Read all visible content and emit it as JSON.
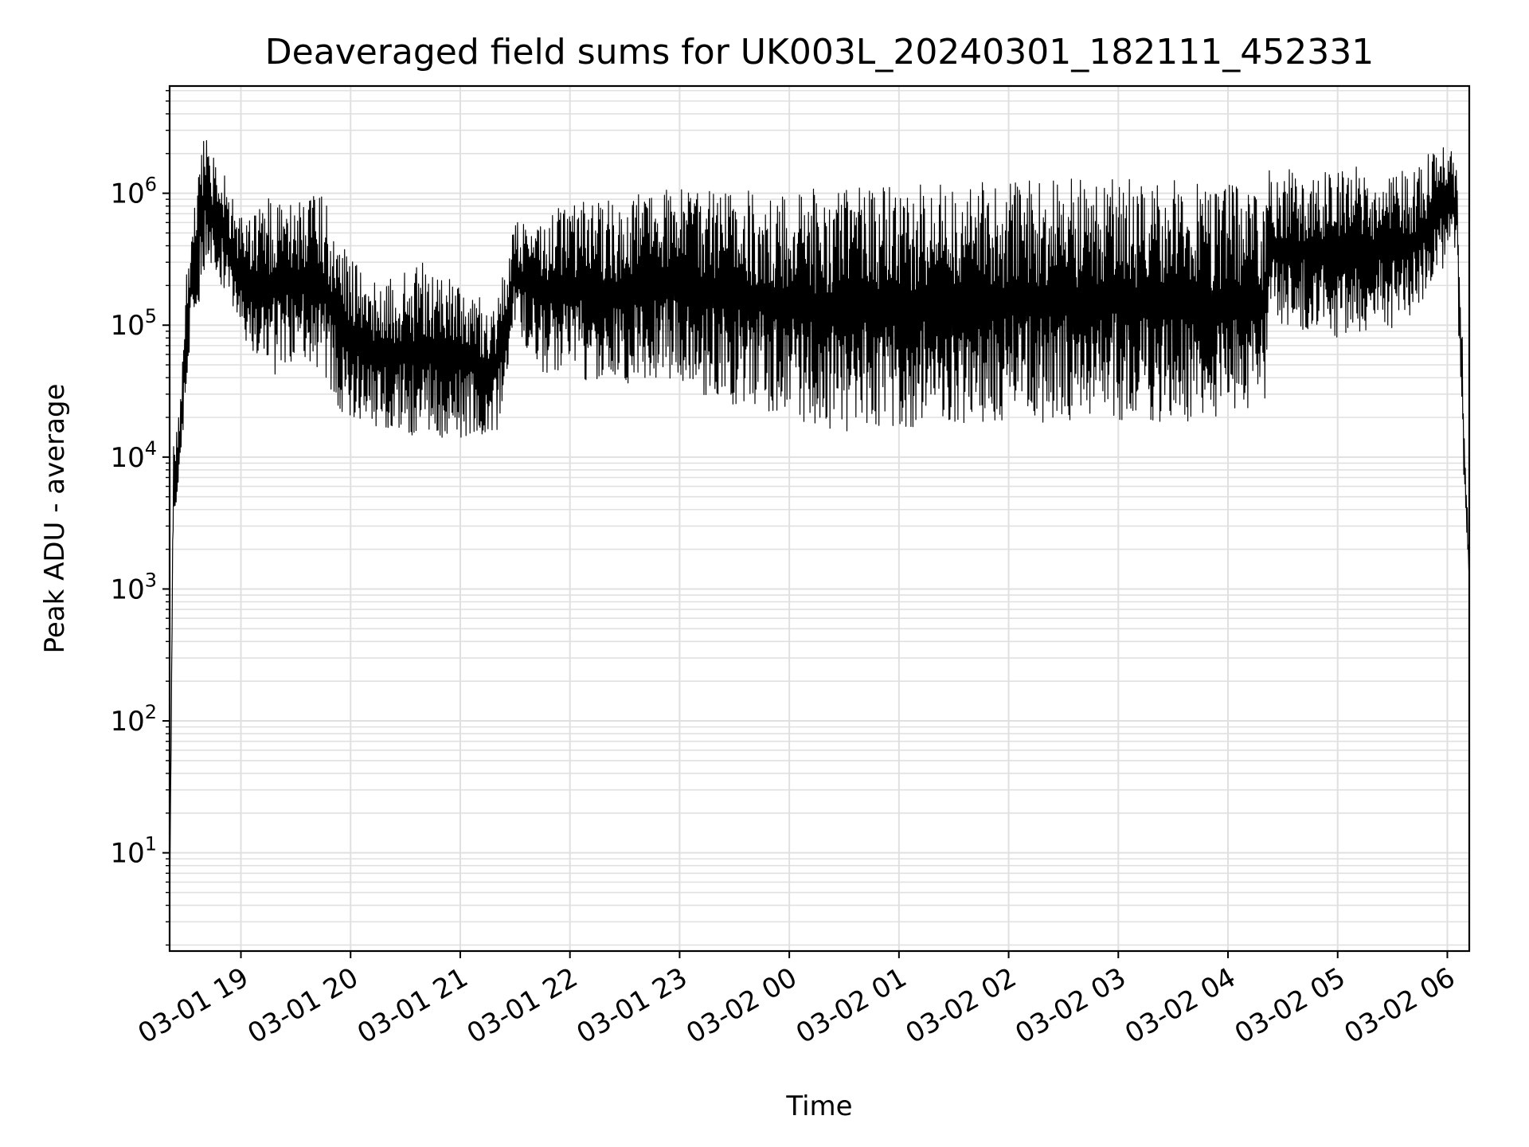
{
  "chart_data": {
    "type": "line",
    "title": "Deaveraged field sums for UK003L_20240301_182111_452331",
    "xlabel": "Time",
    "ylabel": "Peak ADU - average",
    "y_scale": "log",
    "ylim": [
      1.8,
      6500000
    ],
    "xlim": [
      "2024-03-01 18:21",
      "2024-03-02 06:12"
    ],
    "grid": "major and minor",
    "line_color": "#000000",
    "grid_color": "#e0e0e0",
    "x_ticks": [
      {
        "value": "2024-03-01 19:00",
        "label": "03-01 19"
      },
      {
        "value": "2024-03-01 20:00",
        "label": "03-01 20"
      },
      {
        "value": "2024-03-01 21:00",
        "label": "03-01 21"
      },
      {
        "value": "2024-03-01 22:00",
        "label": "03-01 22"
      },
      {
        "value": "2024-03-01 23:00",
        "label": "03-01 23"
      },
      {
        "value": "2024-03-02 00:00",
        "label": "03-02 00"
      },
      {
        "value": "2024-03-02 01:00",
        "label": "03-02 01"
      },
      {
        "value": "2024-03-02 02:00",
        "label": "03-02 02"
      },
      {
        "value": "2024-03-02 03:00",
        "label": "03-02 03"
      },
      {
        "value": "2024-03-02 04:00",
        "label": "03-02 04"
      },
      {
        "value": "2024-03-02 05:00",
        "label": "03-02 05"
      },
      {
        "value": "2024-03-02 06:00",
        "label": "03-02 06"
      }
    ],
    "y_ticks": [
      {
        "value": 10,
        "base": "10",
        "exp": "1"
      },
      {
        "value": 100,
        "base": "10",
        "exp": "2"
      },
      {
        "value": 1000,
        "base": "10",
        "exp": "3"
      },
      {
        "value": 10000,
        "base": "10",
        "exp": "4"
      },
      {
        "value": 100000,
        "base": "10",
        "exp": "5"
      },
      {
        "value": 1000000,
        "base": "10",
        "exp": "6"
      }
    ],
    "envelope": [
      {
        "t": "2024-03-01 18:21",
        "lo": 4,
        "hi": 4
      },
      {
        "t": "2024-03-01 18:23",
        "lo": 3000,
        "hi": 12000
      },
      {
        "t": "2024-03-01 18:27",
        "lo": 8000,
        "hi": 30000
      },
      {
        "t": "2024-03-01 18:31",
        "lo": 50000,
        "hi": 400000
      },
      {
        "t": "2024-03-01 18:40",
        "lo": 250000,
        "hi": 3000000
      },
      {
        "t": "2024-03-01 18:50",
        "lo": 200000,
        "hi": 1500000
      },
      {
        "t": "2024-03-01 19:00",
        "lo": 80000,
        "hi": 700000
      },
      {
        "t": "2024-03-01 19:15",
        "lo": 40000,
        "hi": 1000000
      },
      {
        "t": "2024-03-01 19:30",
        "lo": 50000,
        "hi": 900000
      },
      {
        "t": "2024-03-01 19:45",
        "lo": 40000,
        "hi": 1000000
      },
      {
        "t": "2024-03-01 19:55",
        "lo": 20000,
        "hi": 400000
      },
      {
        "t": "2024-03-01 20:15",
        "lo": 15000,
        "hi": 200000
      },
      {
        "t": "2024-03-01 20:40",
        "lo": 14000,
        "hi": 300000
      },
      {
        "t": "2024-03-01 21:00",
        "lo": 14000,
        "hi": 200000
      },
      {
        "t": "2024-03-01 21:20",
        "lo": 15000,
        "hi": 150000
      },
      {
        "t": "2024-03-01 21:30",
        "lo": 100000,
        "hi": 600000
      },
      {
        "t": "2024-03-01 21:45",
        "lo": 40000,
        "hi": 700000
      },
      {
        "t": "2024-03-01 22:00",
        "lo": 40000,
        "hi": 900000
      },
      {
        "t": "2024-03-01 22:30",
        "lo": 35000,
        "hi": 900000
      },
      {
        "t": "2024-03-01 22:45",
        "lo": 40000,
        "hi": 1100000
      },
      {
        "t": "2024-03-01 23:30",
        "lo": 25000,
        "hi": 1100000
      },
      {
        "t": "2024-03-02 00:30",
        "lo": 15000,
        "hi": 1100000
      },
      {
        "t": "2024-03-02 01:30",
        "lo": 18000,
        "hi": 1200000
      },
      {
        "t": "2024-03-02 02:30",
        "lo": 18000,
        "hi": 1300000
      },
      {
        "t": "2024-03-02 03:30",
        "lo": 18000,
        "hi": 1300000
      },
      {
        "t": "2024-03-02 04:20",
        "lo": 18000,
        "hi": 1100000
      },
      {
        "t": "2024-03-02 04:22",
        "lo": 100000,
        "hi": 1500000
      },
      {
        "t": "2024-03-02 05:00",
        "lo": 80000,
        "hi": 1600000
      },
      {
        "t": "2024-03-02 05:40",
        "lo": 100000,
        "hi": 1600000
      },
      {
        "t": "2024-03-02 06:00",
        "lo": 300000,
        "hi": 2500000
      },
      {
        "t": "2024-03-02 06:05",
        "lo": 300000,
        "hi": 2000000
      },
      {
        "t": "2024-03-02 06:09",
        "lo": 5000,
        "hi": 40000
      },
      {
        "t": "2024-03-02 06:12",
        "lo": 1200,
        "hi": 1200
      }
    ]
  }
}
